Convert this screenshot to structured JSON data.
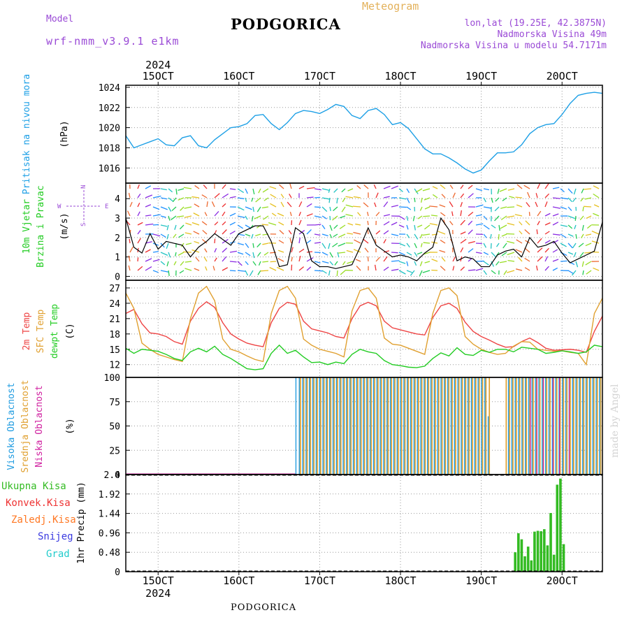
{
  "header": {
    "model_label": "Model",
    "model_name": "wrf-nmm_v3.9.1 e1km",
    "title": "PODGORICA",
    "meteogram": "Meteogram",
    "lonlat": "lon,lat (19.25E, 42.3875N)",
    "altitude": "Nadmorska Visina 49m",
    "model_altitude": "Nadmorska Visina u modelu 54.7171m",
    "footer": "PODGORICA",
    "credit": "made by Angel"
  },
  "colors": {
    "pressure": "#1ea0e6",
    "wind_label": "#22cc22",
    "temp2m": "#ee4444",
    "sfc_temp": "#e0a030",
    "dewpoint": "#22cc22",
    "high_cloud": "#1e9be0",
    "mid_cloud": "#e0a030",
    "low_cloud": "#d020a0",
    "precip": "#33bb22",
    "snow": "#3a3ae0",
    "hail": "#22cccc",
    "conv_rain": "#ee3333",
    "frozen": "#ff7722",
    "compass": "#9a4ad6"
  },
  "time_axis": {
    "year": "2024",
    "ticks": [
      {
        "day": 15,
        "label": "15OCT"
      },
      {
        "day": 16,
        "label": "16OCT"
      },
      {
        "day": 17,
        "label": "17OCT"
      },
      {
        "day": 18,
        "label": "18OCT"
      },
      {
        "day": 19,
        "label": "19OCT"
      },
      {
        "day": 20,
        "label": "20OCT"
      }
    ],
    "start_day": 14.6,
    "end_day": 20.5
  },
  "chart_data": [
    {
      "type": "line",
      "panel": "pressure",
      "ylabel": [
        "Pritisak na nivou mora",
        "(hPa)"
      ],
      "ylim": [
        1014.5,
        1024.2
      ],
      "yticks": [
        1016,
        1018,
        1020,
        1022,
        1024
      ],
      "series": [
        {
          "x": [
            14.6,
            14.7,
            14.8,
            14.9,
            15.0,
            15.1,
            15.2,
            15.3,
            15.4,
            15.5,
            15.6,
            15.7,
            15.8,
            15.9,
            16.0,
            16.1,
            16.2,
            16.3,
            16.4,
            16.5,
            16.6,
            16.7,
            16.8,
            16.9,
            17.0,
            17.1,
            17.2,
            17.3,
            17.4,
            17.5,
            17.6,
            17.7,
            17.8,
            17.9,
            18.0,
            18.1,
            18.2,
            18.3,
            18.4,
            18.5,
            18.6,
            18.7,
            18.8,
            18.9,
            19.0,
            19.1,
            19.2,
            19.3,
            19.4,
            19.5,
            19.6,
            19.7,
            19.8,
            19.9,
            20.0,
            20.1,
            20.2,
            20.3,
            20.4,
            20.5
          ],
          "values": [
            1019.2,
            1018.0,
            1018.3,
            1018.6,
            1018.9,
            1018.3,
            1018.2,
            1019.0,
            1019.2,
            1018.2,
            1018.0,
            1018.8,
            1019.4,
            1020.0,
            1020.1,
            1020.4,
            1021.2,
            1021.3,
            1020.4,
            1019.8,
            1020.5,
            1021.4,
            1021.7,
            1021.6,
            1021.4,
            1021.8,
            1022.3,
            1022.1,
            1021.2,
            1020.9,
            1021.7,
            1021.9,
            1021.3,
            1020.3,
            1020.5,
            1019.9,
            1018.9,
            1017.9,
            1017.4,
            1017.4,
            1017.0,
            1016.5,
            1015.9,
            1015.5,
            1015.8,
            1016.7,
            1017.5,
            1017.5,
            1017.6,
            1018.3,
            1019.4,
            1020.0,
            1020.3,
            1020.4,
            1021.3,
            1022.4,
            1023.2,
            1023.4,
            1023.5,
            1023.4
          ]
        }
      ]
    },
    {
      "type": "line",
      "panel": "wind",
      "ylabel": [
        "10m Vjetar",
        "Brzina i Pravac",
        "(m/s)"
      ],
      "compass": {
        "n": "N",
        "s": "S",
        "e": "E",
        "w": "W"
      },
      "ylim": [
        -0.2,
        4.8
      ],
      "yticks": [
        0,
        1,
        2,
        3,
        4
      ],
      "series": [
        {
          "x": [
            14.6,
            14.7,
            14.8,
            14.9,
            15.0,
            15.1,
            15.2,
            15.3,
            15.4,
            15.5,
            15.6,
            15.7,
            15.8,
            15.9,
            16.0,
            16.1,
            16.2,
            16.3,
            16.4,
            16.5,
            16.6,
            16.7,
            16.8,
            16.9,
            17.0,
            17.1,
            17.2,
            17.3,
            17.4,
            17.5,
            17.6,
            17.7,
            17.8,
            17.9,
            18.0,
            18.1,
            18.2,
            18.3,
            18.4,
            18.5,
            18.6,
            18.7,
            18.8,
            18.9,
            19.0,
            19.1,
            19.2,
            19.3,
            19.4,
            19.5,
            19.6,
            19.7,
            19.8,
            19.9,
            20.0,
            20.1,
            20.2,
            20.3,
            20.4,
            20.5
          ],
          "values": [
            3.0,
            1.5,
            1.2,
            2.2,
            1.4,
            1.8,
            1.7,
            1.6,
            1.0,
            1.5,
            1.8,
            2.2,
            1.9,
            1.6,
            2.2,
            2.4,
            2.6,
            2.6,
            1.8,
            0.5,
            0.6,
            2.5,
            2.2,
            0.8,
            0.5,
            0.5,
            0.4,
            0.5,
            0.6,
            1.5,
            2.5,
            1.6,
            1.3,
            1.0,
            1.1,
            1.0,
            0.8,
            1.2,
            1.5,
            3.0,
            2.4,
            0.8,
            1.0,
            0.9,
            0.5,
            0.5,
            1.1,
            1.3,
            1.4,
            1.0,
            2.0,
            1.5,
            1.6,
            1.8,
            1.2,
            0.7,
            0.9,
            1.1,
            1.3,
            2.8
          ]
        }
      ]
    },
    {
      "type": "line",
      "panel": "temperature",
      "ylabel": [
        "2m Temp",
        "SFC Temp",
        "dewpt Temp",
        "(C)"
      ],
      "ylim": [
        9.5,
        28.5
      ],
      "yticks": [
        12,
        15,
        18,
        21,
        24,
        27
      ],
      "series": [
        {
          "name": "2m Temp",
          "x": [
            14.6,
            14.7,
            14.8,
            14.9,
            15.0,
            15.1,
            15.2,
            15.3,
            15.4,
            15.5,
            15.6,
            15.7,
            15.8,
            15.9,
            16.0,
            16.1,
            16.2,
            16.3,
            16.4,
            16.5,
            16.6,
            16.7,
            16.8,
            16.9,
            17.0,
            17.1,
            17.2,
            17.3,
            17.4,
            17.5,
            17.6,
            17.7,
            17.8,
            17.9,
            18.0,
            18.1,
            18.2,
            18.3,
            18.4,
            18.5,
            18.6,
            18.7,
            18.8,
            18.9,
            19.0,
            19.1,
            19.2,
            19.3,
            19.4,
            19.5,
            19.6,
            19.7,
            19.8,
            19.9,
            20.0,
            20.1,
            20.2,
            20.3,
            20.4,
            20.5
          ],
          "values": [
            22.0,
            22.8,
            20.0,
            18.2,
            18.0,
            17.5,
            16.5,
            16.0,
            20.5,
            23.0,
            24.3,
            23.2,
            20.2,
            18.0,
            17.0,
            16.2,
            15.8,
            15.5,
            20.2,
            23.0,
            24.2,
            23.8,
            20.5,
            19.0,
            18.6,
            18.2,
            17.5,
            17.2,
            21.0,
            23.5,
            24.2,
            23.5,
            20.5,
            19.2,
            18.8,
            18.4,
            18.0,
            17.8,
            21.2,
            23.5,
            24.0,
            23.0,
            20.3,
            18.5,
            17.5,
            16.8,
            16.0,
            15.4,
            15.5,
            16.5,
            17.2,
            16.3,
            15.2,
            14.8,
            14.9,
            15.0,
            14.8,
            14.4,
            18.5,
            21.5
          ]
        },
        {
          "name": "SFC Temp",
          "x": [
            14.6,
            14.7,
            14.8,
            14.9,
            15.0,
            15.1,
            15.2,
            15.3,
            15.4,
            15.5,
            15.6,
            15.7,
            15.8,
            15.9,
            16.0,
            16.1,
            16.2,
            16.3,
            16.4,
            16.5,
            16.6,
            16.7,
            16.8,
            16.9,
            17.0,
            17.1,
            17.2,
            17.3,
            17.4,
            17.5,
            17.6,
            17.7,
            17.8,
            17.9,
            18.0,
            18.1,
            18.2,
            18.3,
            18.4,
            18.5,
            18.6,
            18.7,
            18.8,
            18.9,
            19.0,
            19.1,
            19.2,
            19.3,
            19.4,
            19.5,
            19.6,
            19.7,
            19.8,
            19.9,
            20.0,
            20.1,
            20.2,
            20.3,
            20.4,
            20.5
          ],
          "values": [
            26.0,
            23.0,
            16.2,
            15.0,
            14.0,
            13.5,
            13.0,
            12.6,
            21.0,
            26.0,
            27.3,
            24.5,
            17.0,
            15.0,
            14.5,
            13.7,
            13.0,
            12.6,
            22.0,
            26.5,
            27.3,
            25.0,
            17.0,
            15.8,
            15.0,
            14.6,
            14.2,
            13.5,
            22.5,
            26.5,
            27.0,
            25.0,
            17.2,
            16.0,
            15.8,
            15.2,
            14.6,
            14.0,
            22.0,
            26.5,
            27.0,
            25.5,
            17.5,
            16.0,
            15.0,
            14.4,
            14.0,
            14.2,
            15.6,
            16.5,
            16.4,
            15.0,
            14.8,
            14.6,
            14.7,
            14.4,
            14.2,
            12.0,
            22.0,
            25.0
          ]
        },
        {
          "name": "dewpt Temp",
          "x": [
            14.6,
            14.7,
            14.8,
            14.9,
            15.0,
            15.1,
            15.2,
            15.3,
            15.4,
            15.5,
            15.6,
            15.7,
            15.8,
            15.9,
            16.0,
            16.1,
            16.2,
            16.3,
            16.4,
            16.5,
            16.6,
            16.7,
            16.8,
            16.9,
            17.0,
            17.1,
            17.2,
            17.3,
            17.4,
            17.5,
            17.6,
            17.7,
            17.8,
            17.9,
            18.0,
            18.1,
            18.2,
            18.3,
            18.4,
            18.5,
            18.6,
            18.7,
            18.8,
            18.9,
            19.0,
            19.1,
            19.2,
            19.3,
            19.4,
            19.5,
            19.6,
            19.7,
            19.8,
            19.9,
            20.0,
            20.1,
            20.2,
            20.3,
            20.4,
            20.5
          ],
          "values": [
            15.2,
            14.2,
            15.0,
            14.8,
            14.6,
            14.0,
            13.2,
            12.8,
            14.5,
            15.2,
            14.5,
            15.6,
            14.0,
            13.2,
            12.2,
            11.2,
            11.0,
            11.2,
            14.2,
            15.8,
            14.2,
            14.8,
            13.5,
            12.4,
            12.5,
            12.0,
            12.5,
            12.2,
            14.0,
            15.0,
            14.5,
            14.2,
            12.8,
            12.0,
            11.8,
            11.5,
            11.4,
            11.7,
            13.2,
            14.3,
            13.7,
            15.3,
            14.0,
            13.8,
            14.8,
            14.4,
            15.0,
            15.0,
            14.5,
            15.4,
            15.2,
            15.0,
            14.2,
            14.4,
            14.7,
            14.5,
            14.2,
            14.5,
            15.8,
            15.5
          ]
        }
      ]
    },
    {
      "type": "bar",
      "panel": "clouds",
      "ylabel": [
        "Visoka Oblacnost",
        "Srednja Oblacnost",
        "Niska Oblacnost",
        "(%)"
      ],
      "ylim": [
        0,
        100
      ],
      "yticks": [
        0,
        25,
        50,
        75,
        100
      ],
      "notes": "values are fraction-of-sky % per hour; segments of x-range with near-full cover",
      "series": [
        {
          "name": "Visoka Oblacnost",
          "x_start": 16.7,
          "x_end": 20.5,
          "values": [
            100,
            100,
            100,
            100,
            100,
            100,
            100,
            100,
            100,
            100,
            100,
            100,
            100,
            100,
            100,
            100,
            100,
            100,
            100,
            100,
            100,
            100,
            100,
            100,
            100,
            100,
            100,
            100,
            100,
            100,
            100,
            100,
            100,
            100,
            100,
            100,
            100,
            100,
            100,
            100,
            100,
            100,
            100,
            100,
            100,
            100,
            100,
            100,
            100,
            100,
            100,
            100,
            100,
            100,
            100,
            100,
            100,
            60,
            0,
            0,
            0,
            0,
            0,
            100,
            100,
            100,
            100,
            100,
            100,
            100,
            100,
            100,
            100,
            100,
            100,
            100,
            100,
            100,
            100,
            100,
            100,
            100,
            100,
            100,
            100,
            100,
            100,
            100,
            100,
            100,
            100
          ]
        },
        {
          "name": "Srednja Oblacnost",
          "x_start": 16.7,
          "x_end": 20.5,
          "values": [
            0,
            100,
            100,
            100,
            100,
            100,
            100,
            100,
            100,
            100,
            100,
            100,
            100,
            100,
            100,
            100,
            100,
            100,
            100,
            100,
            100,
            100,
            100,
            100,
            100,
            100,
            100,
            100,
            100,
            100,
            100,
            100,
            100,
            100,
            100,
            100,
            100,
            100,
            100,
            100,
            100,
            100,
            100,
            100,
            100,
            100,
            100,
            100,
            100,
            100,
            100,
            100,
            100,
            100,
            100,
            100,
            100,
            100,
            0,
            0,
            0,
            0,
            100,
            100,
            100,
            100,
            100,
            100,
            100,
            100,
            100,
            100,
            100,
            100,
            100,
            100,
            100,
            100,
            100,
            100,
            100,
            100,
            100,
            100,
            100,
            100,
            100,
            100,
            100,
            100,
            100
          ]
        },
        {
          "name": "Niska Oblacnost",
          "x_start": 19.5,
          "x_end": 20.1,
          "values": [
            0,
            0,
            100,
            0,
            100,
            0,
            100,
            0,
            0,
            100,
            0,
            100,
            0,
            0,
            100
          ]
        }
      ]
    },
    {
      "type": "bar",
      "panel": "precip",
      "ylabel": [
        "1hr Precip (mm)"
      ],
      "legend": [
        "Ukupna Kisa",
        "Konvek.Kisa",
        "Zaledj.Kisa",
        "Snijeg",
        "Grad"
      ],
      "ylim": [
        0,
        2.4
      ],
      "yticks": [
        0,
        0.48,
        0.96,
        1.44,
        1.92,
        2.4
      ],
      "series": [
        {
          "name": "Ukupna Kisa",
          "x": [
            19.42,
            19.46,
            19.5,
            19.54,
            19.58,
            19.62,
            19.66,
            19.7,
            19.74,
            19.78,
            19.82,
            19.86,
            19.9,
            19.94,
            19.98,
            20.02
          ],
          "values": [
            0.48,
            0.95,
            0.8,
            0.38,
            0.62,
            0.28,
            0.99,
            1.01,
            1.0,
            1.05,
            0.65,
            1.45,
            0.42,
            2.15,
            2.3,
            0.68
          ]
        }
      ]
    }
  ]
}
